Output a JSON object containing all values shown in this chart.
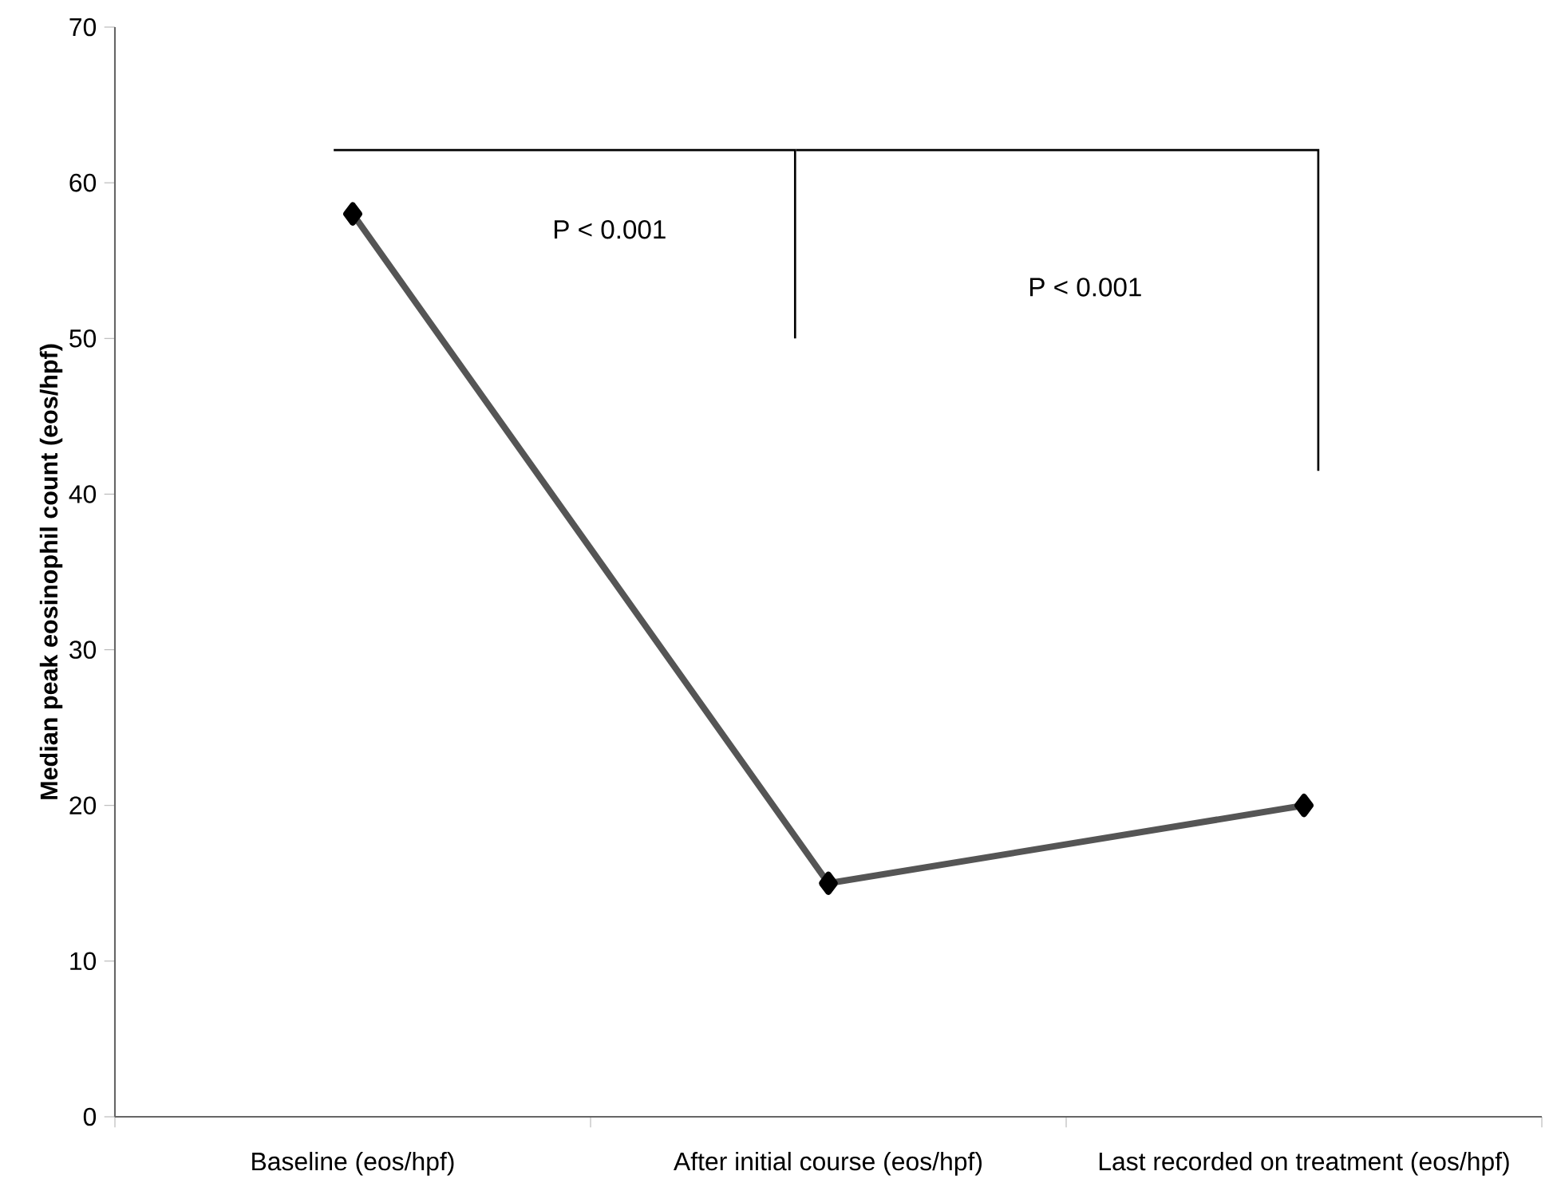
{
  "chart_data": {
    "type": "line",
    "ylabel": "Median peak eosinophil count (eos/hpf)",
    "categories": [
      "Baseline (eos/hpf)",
      "After initial course (eos/hpf)",
      "Last recorded on treatment (eos/hpf)"
    ],
    "series": [
      {
        "color": "#555555",
        "values": [
          58,
          15,
          20
        ]
      }
    ],
    "marker": "diamond",
    "line_style": "solid",
    "ylim": [
      0,
      70
    ],
    "yticks": [
      0,
      10,
      20,
      30,
      40,
      50,
      60,
      70
    ],
    "annotations": [
      "P <  0.001",
      "P < 0.001"
    ]
  }
}
